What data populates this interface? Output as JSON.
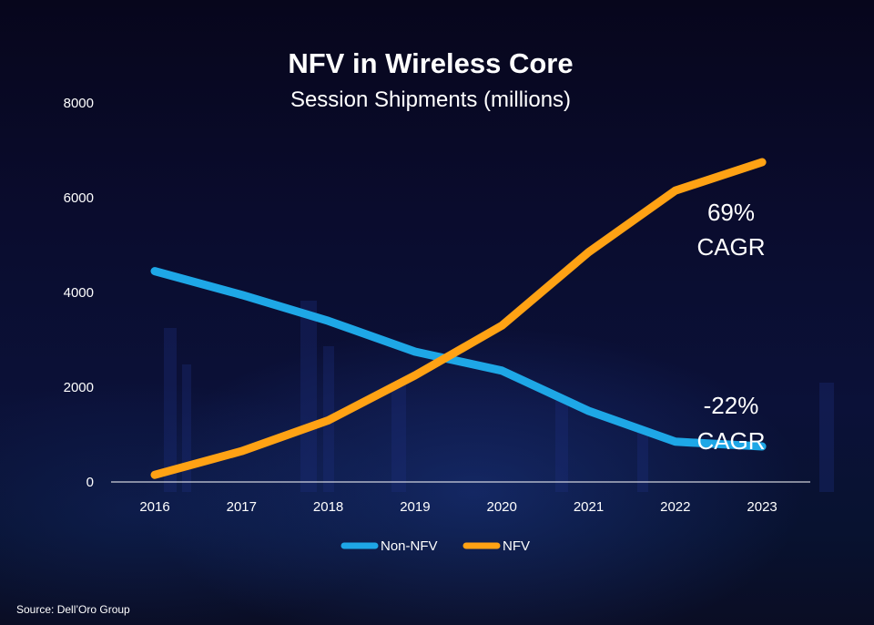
{
  "chart_data": {
    "type": "line",
    "title": "NFV in Wireless Core",
    "subtitle": "Session Shipments (millions)",
    "categories": [
      "2016",
      "2017",
      "2018",
      "2019",
      "2020",
      "2021",
      "2022",
      "2023"
    ],
    "ylim": [
      0,
      8000
    ],
    "yticks": [
      "0",
      "2000",
      "4000",
      "6000",
      "8000"
    ],
    "grid": false,
    "legend_position": "bottom",
    "series": [
      {
        "name": "Non-NFV",
        "color": "#1ea7e6",
        "values": [
          4450,
          3950,
          3400,
          2750,
          2350,
          1500,
          850,
          750
        ]
      },
      {
        "name": "NFV",
        "color": "#ffa214",
        "values": [
          150,
          650,
          1300,
          2250,
          3300,
          4850,
          6150,
          6750
        ]
      }
    ],
    "annotations": [
      {
        "line1": "69%",
        "line2": "CAGR",
        "series": "NFV"
      },
      {
        "line1": "-22%",
        "line2": "CAGR",
        "series": "Non-NFV"
      }
    ],
    "source": "Source: Dell’Oro Group"
  },
  "colors": {
    "background": "#0a0c2e",
    "axis": "#ffffff",
    "text": "#ffffff"
  }
}
